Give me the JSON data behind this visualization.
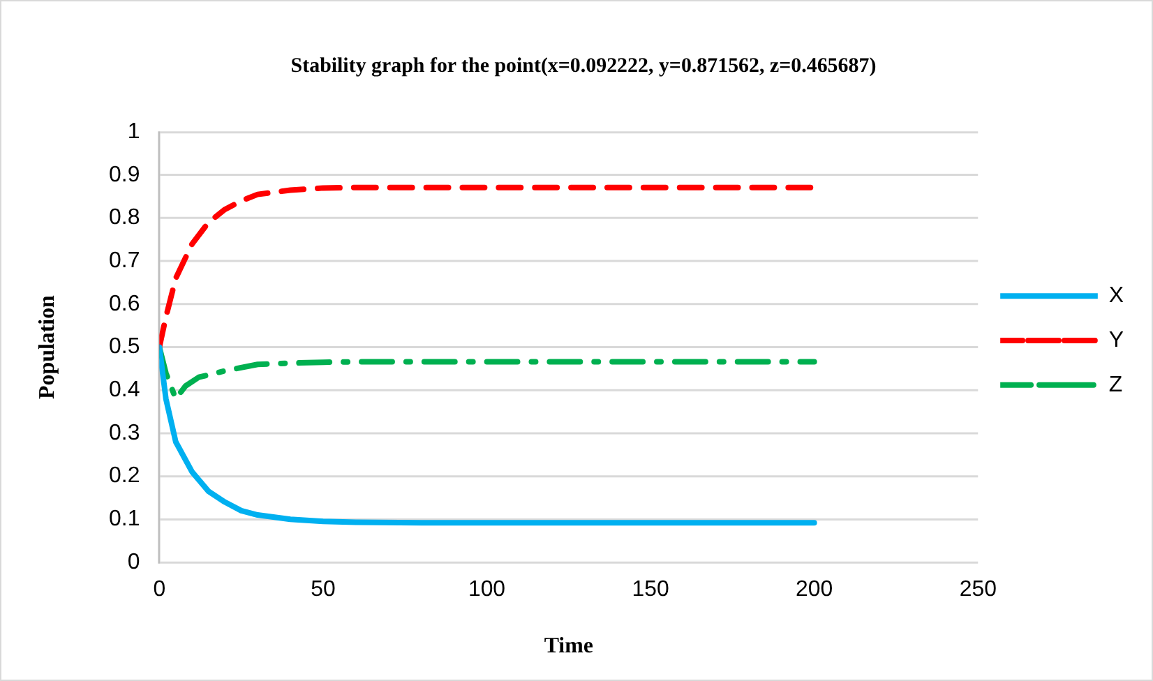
{
  "chart_data": {
    "type": "line",
    "title": "Stability graph for the point(x=0.092222, y=0.871562, z=0.465687)",
    "xlabel": "Time",
    "ylabel": "Population",
    "xlim": [
      0,
      250
    ],
    "xticks": [
      0,
      50,
      100,
      150,
      200,
      250
    ],
    "ylim": [
      0,
      1
    ],
    "yticks": [
      0,
      0.1,
      0.2,
      0.3,
      0.4,
      0.5,
      0.6,
      0.7,
      0.8,
      0.9,
      1
    ],
    "grid": "y",
    "legend": "right",
    "marker": "none",
    "series": [
      {
        "name": "X",
        "color": "#00b0f0",
        "line_style": "solid",
        "x": [
          0,
          2,
          5,
          10,
          15,
          20,
          25,
          30,
          40,
          50,
          60,
          80,
          100,
          150,
          200
        ],
        "values": [
          0.5,
          0.38,
          0.28,
          0.21,
          0.165,
          0.14,
          0.12,
          0.11,
          0.1,
          0.095,
          0.093,
          0.092,
          0.092,
          0.092,
          0.092
        ]
      },
      {
        "name": "Y",
        "color": "#ff0000",
        "line_style": "dashed",
        "x": [
          0,
          2,
          5,
          10,
          15,
          20,
          25,
          30,
          40,
          50,
          60,
          80,
          100,
          150,
          200
        ],
        "values": [
          0.5,
          0.57,
          0.66,
          0.74,
          0.79,
          0.82,
          0.84,
          0.855,
          0.865,
          0.87,
          0.871,
          0.871,
          0.871,
          0.871,
          0.871
        ]
      },
      {
        "name": "Z",
        "color": "#00b050",
        "line_style": "dashdot",
        "x": [
          0,
          2,
          5,
          8,
          12,
          20,
          30,
          40,
          50,
          60,
          80,
          100,
          150,
          200
        ],
        "values": [
          0.5,
          0.44,
          0.38,
          0.41,
          0.43,
          0.445,
          0.46,
          0.463,
          0.465,
          0.466,
          0.466,
          0.466,
          0.466,
          0.466
        ]
      }
    ]
  }
}
